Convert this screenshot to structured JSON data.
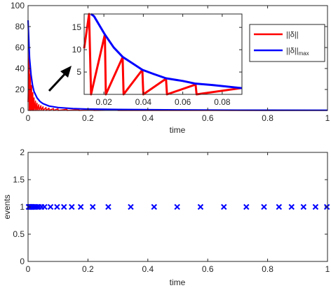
{
  "chart_data": [
    {
      "type": "line",
      "xlabel": "time",
      "ylabel": "",
      "xlim": [
        0,
        1
      ],
      "ylim": [
        0,
        100
      ],
      "x_ticks": [
        "0",
        "0.2",
        "0.4",
        "0.6",
        "0.8",
        "1"
      ],
      "y_ticks": [
        "0",
        "20",
        "40",
        "60",
        "80",
        "100"
      ],
      "grid": false,
      "legend_position": "top-right",
      "series": [
        {
          "name": "||δ||",
          "color": "#ff0000",
          "type": "sawtooth",
          "x": [
            0,
            0.004,
            0.004,
            0.008,
            0.008,
            0.012,
            0.012,
            0.016,
            0.016,
            0.02,
            0.02,
            0.025,
            0.025,
            0.03,
            0.03,
            0.036,
            0.036,
            0.043,
            0.043,
            0.05,
            0.05,
            0.06,
            0.06,
            0.07,
            0.07,
            0.085,
            0.085,
            0.1,
            0.1,
            0.13,
            0.13,
            0.17,
            0.17,
            0.22,
            0.22,
            0.3,
            0.3,
            1
          ],
          "y": [
            8,
            60,
            0,
            35,
            0,
            24,
            0,
            17,
            0,
            12,
            0,
            9,
            0,
            7,
            0,
            5.5,
            0,
            4.5,
            0,
            3.5,
            0,
            2.8,
            0,
            2.2,
            0,
            1.8,
            0,
            1.5,
            0,
            1.1,
            0,
            0.8,
            0,
            0.6,
            0,
            0.4,
            0,
            0.1
          ]
        },
        {
          "name": "||δ||max",
          "color": "#0000ff",
          "type": "envelope",
          "x": [
            0,
            0.005,
            0.01,
            0.015,
            0.02,
            0.03,
            0.04,
            0.05,
            0.07,
            0.1,
            0.15,
            0.2,
            0.3,
            0.5,
            0.7,
            1
          ],
          "y": [
            86,
            50,
            34,
            24,
            18,
            12,
            8.5,
            6.5,
            4.2,
            2.8,
            1.8,
            1.3,
            0.9,
            0.5,
            0.3,
            0.2
          ]
        }
      ],
      "inset": {
        "xlim": [
          0.01,
          0.09
        ],
        "ylim": [
          0,
          18
        ],
        "x_ticks": [
          "0.02",
          "0.04",
          "0.06",
          "0.08"
        ],
        "y_ticks": [
          "5",
          "10",
          "15"
        ],
        "red": {
          "x": [
            0.01,
            0.0125,
            0.0135,
            0.0205,
            0.0205,
            0.021,
            0.0295,
            0.0295,
            0.03,
            0.0395,
            0.0395,
            0.04,
            0.0515,
            0.0515,
            0.052,
            0.0665,
            0.0665,
            0.067,
            0.0895
          ],
          "y": [
            10.3,
            19,
            0,
            13.4,
            13.4,
            0,
            8.3,
            8.3,
            0,
            5.5,
            5.5,
            0,
            3.5,
            3.5,
            0,
            2.2,
            2.2,
            0,
            1.4
          ]
        },
        "blue": {
          "x": [
            0.0135,
            0.015,
            0.0205,
            0.025,
            0.0295,
            0.035,
            0.0395,
            0.045,
            0.0515,
            0.06,
            0.0665,
            0.075,
            0.09
          ],
          "y": [
            19.5,
            17.5,
            13.4,
            10.5,
            8.4,
            6.8,
            5.5,
            4.6,
            3.6,
            3.0,
            2.4,
            2.1,
            1.4
          ]
        }
      }
    },
    {
      "type": "scatter",
      "xlabel": "time",
      "ylabel": "events",
      "xlim": [
        0,
        1
      ],
      "ylim": [
        0,
        2
      ],
      "x_ticks": [
        "0",
        "0.2",
        "0.4",
        "0.6",
        "0.8",
        "1"
      ],
      "y_ticks": [
        "0",
        "0.5",
        "1",
        "1.5",
        "2"
      ],
      "grid": false,
      "marker": "x",
      "color": "#0000ff",
      "x": [
        0.002,
        0.004,
        0.006,
        0.008,
        0.01,
        0.012,
        0.014,
        0.017,
        0.02,
        0.025,
        0.03,
        0.036,
        0.045,
        0.055,
        0.075,
        0.097,
        0.12,
        0.146,
        0.176,
        0.216,
        0.268,
        0.343,
        0.421,
        0.498,
        0.576,
        0.654,
        0.729,
        0.788,
        0.838,
        0.88,
        0.92,
        0.96,
        0.998
      ],
      "y": [
        1,
        1,
        1,
        1,
        1,
        1,
        1,
        1,
        1,
        1,
        1,
        1,
        1,
        1,
        1,
        1,
        1,
        1,
        1,
        1,
        1,
        1,
        1,
        1,
        1,
        1,
        1,
        1,
        1,
        1,
        1,
        1,
        1
      ]
    }
  ]
}
